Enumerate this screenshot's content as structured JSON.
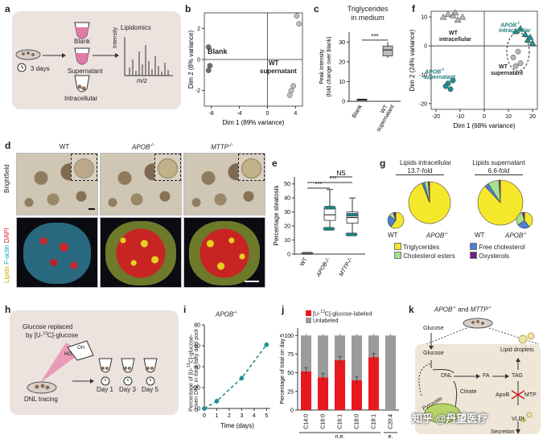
{
  "figure": {
    "panel_letters": [
      "a",
      "b",
      "c",
      "d",
      "e",
      "f",
      "g",
      "h",
      "i",
      "j",
      "k"
    ],
    "watermark": "知乎 @丹望医疗"
  },
  "panel_a": {
    "days": "3 days",
    "blank": "Blank",
    "supernatant": "Supernatant",
    "intracellular": "Intracellular",
    "lipidomics": "Lipidomics",
    "ylabel": "Intensity",
    "xlabel": "m/z"
  },
  "panel_b": {
    "xlabel": "Dim 1 (89% variance)",
    "ylabel": "Dim 2 (8% variance)",
    "label_blank": "Blank",
    "label_wt": "WT",
    "label_wt2": "supernatant",
    "xticks": [
      "-8",
      "-4",
      "0",
      "4"
    ],
    "yticks": [
      "2",
      "0",
      "-2"
    ],
    "chart_data": {
      "type": "scatter",
      "xlabel": "Dim 1 (89% variance)",
      "ylabel": "Dim 2 (8% variance)",
      "xlim": [
        -9,
        5
      ],
      "ylim": [
        -3,
        3
      ],
      "series": [
        {
          "name": "Blank",
          "color": "#6f6f6f",
          "points": [
            [
              -8.4,
              0.8
            ],
            [
              -8.2,
              -0.4
            ],
            [
              -8.4,
              -0.7
            ]
          ]
        },
        {
          "name": "WT supernatant",
          "color": "#bcbcbc",
          "points": [
            [
              4.2,
              2.8
            ],
            [
              4.5,
              2.3
            ],
            [
              3.4,
              -2.0
            ],
            [
              3.7,
              -1.7
            ],
            [
              3.2,
              -2.3
            ]
          ]
        }
      ]
    }
  },
  "panel_c": {
    "title": "Triglycerides",
    "title2": "in medium",
    "ylabel": "Peak intensity",
    "ylabel2": "(fold change over blank)",
    "yticks": [
      "0",
      "10",
      "20",
      "30"
    ],
    "categories": [
      "Blank",
      "WT",
      "supernatant"
    ],
    "sig": "***",
    "chart_data": {
      "type": "box",
      "categories": [
        "Blank",
        "WT supernatant"
      ],
      "ylim": [
        0,
        35
      ],
      "boxes": [
        {
          "name": "Blank",
          "min": 0.8,
          "q1": 0.9,
          "median": 1.0,
          "q3": 1.1,
          "max": 1.2
        },
        {
          "name": "WT supernatant",
          "min": 22,
          "q1": 23,
          "median": 26,
          "q3": 28,
          "max": 30
        }
      ]
    }
  },
  "panel_d": {
    "cols": [
      "WT",
      "APOB",
      "MTTP"
    ],
    "sup": "-/-",
    "row_bf": "Brightfield",
    "row_fl_lipids": "Lipids",
    "row_fl_factin": "F-actin",
    "row_fl_dapi": "DAPI"
  },
  "panel_e": {
    "ylabel": "Percentage steatosis",
    "yticks": [
      "0",
      "10",
      "20",
      "30",
      "40",
      "50"
    ],
    "categories": [
      "WT",
      "APOB",
      "MTTP"
    ],
    "sup": "-/-",
    "sig_ns": "NS",
    "sig1": "***",
    "sig2": "***",
    "chart_data": {
      "type": "box",
      "categories": [
        "WT",
        "APOB-/-",
        "MTTP-/-"
      ],
      "ylim": [
        0,
        55
      ],
      "boxes": [
        {
          "name": "WT",
          "min": 0,
          "q1": 0.2,
          "median": 0.5,
          "q3": 0.8,
          "max": 1.2
        },
        {
          "name": "APOB-/-",
          "min": 18,
          "q1": 24,
          "median": 28,
          "q3": 33,
          "max": 46
        },
        {
          "name": "MTTP-/-",
          "min": 14,
          "q1": 22,
          "median": 26,
          "q3": 30,
          "max": 40
        }
      ]
    }
  },
  "panel_f": {
    "xlabel": "Dim 1 (68% variance)",
    "ylabel": "Dim 2 (24% variance)",
    "xticks": [
      "-20",
      "-10",
      "0",
      "10",
      "20"
    ],
    "yticks": [
      "10",
      "0",
      "-10",
      "-20"
    ],
    "l_wt_intra": "WT",
    "l_wt_intra2": "intracellular",
    "l_apob_intra": "APOB",
    "l_apob_intra2": "intracellular",
    "l_wt_sup": "WT",
    "l_wt_sup2": "supernatant",
    "l_apob_sup": "APOB",
    "l_apob_sup2": "supernatant",
    "sup": "-/-",
    "chart_data": {
      "type": "scatter",
      "xlabel": "Dim 1 (68% variance)",
      "ylabel": "Dim 2 (24% variance)",
      "xlim": [
        -22,
        22
      ],
      "ylim": [
        -22,
        12
      ],
      "series": [
        {
          "name": "WT intracellular",
          "color": "#b5b5b5",
          "marker": "triangle",
          "points": [
            [
              -17,
              10
            ],
            [
              -15,
              11
            ],
            [
              -13,
              10.5
            ],
            [
              -11,
              9
            ],
            [
              -12,
              11.5
            ],
            [
              -9,
              10
            ]
          ]
        },
        {
          "name": "APOB-/- intracellular",
          "color": "#1f8f8f",
          "marker": "triangle",
          "points": [
            [
              13,
              5
            ],
            [
              15,
              6
            ],
            [
              17,
              4
            ],
            [
              18,
              2
            ],
            [
              19,
              3
            ],
            [
              20,
              1
            ]
          ]
        },
        {
          "name": "WT supernatant",
          "color": "#b5b5b5",
          "marker": "circle",
          "points": [
            [
              12,
              -4
            ],
            [
              14,
              -2
            ],
            [
              15,
              -6
            ],
            [
              13,
              -7
            ]
          ]
        },
        {
          "name": "APOB-/- supernatant",
          "color": "#1f8f8f",
          "marker": "circle",
          "points": [
            [
              -15,
              -13
            ],
            [
              -14,
              -15
            ],
            [
              -13,
              -12
            ],
            [
              -16,
              -14
            ]
          ]
        }
      ]
    }
  },
  "panel_g": {
    "title_intra": "Lipids intracellular",
    "fold_intra": "13.7-fold",
    "title_sup": "Lipids supernatant",
    "fold_sup": "6.6-fold",
    "wt": "WT",
    "apob": "APOB",
    "sup": "-/-",
    "legend": [
      "Triglycerides",
      "Free cholesterol",
      "Cholesterol esters",
      "Oxysterols"
    ],
    "colors": {
      "tg": "#f5e82a",
      "fc": "#4a7fd1",
      "ce": "#a7e08e",
      "ox": "#6b1f8a"
    },
    "chart_data": {
      "type": "pie",
      "pies": [
        {
          "name": "Intracellular WT",
          "slices": [
            {
              "label": "Triglycerides",
              "value": 60
            },
            {
              "label": "Free cholesterol",
              "value": 25
            },
            {
              "label": "Cholesterol esters",
              "value": 10
            },
            {
              "label": "Oxysterols",
              "value": 5
            }
          ]
        },
        {
          "name": "Intracellular APOB-/-",
          "slices": [
            {
              "label": "Triglycerides",
              "value": 94
            },
            {
              "label": "Free cholesterol",
              "value": 2
            },
            {
              "label": "Cholesterol esters",
              "value": 3
            },
            {
              "label": "Oxysterols",
              "value": 1
            }
          ]
        },
        {
          "name": "Supernatant WT",
          "slices": [
            {
              "label": "Triglycerides",
              "value": 88
            },
            {
              "label": "Free cholesterol",
              "value": 3
            },
            {
              "label": "Cholesterol esters",
              "value": 8
            },
            {
              "label": "Oxysterols",
              "value": 1
            }
          ]
        },
        {
          "name": "Supernatant APOB-/-",
          "slices": [
            {
              "label": "Triglycerides",
              "value": 40
            },
            {
              "label": "Free cholesterol",
              "value": 25
            },
            {
              "label": "Cholesterol esters",
              "value": 30
            },
            {
              "label": "Oxysterols",
              "value": 5
            }
          ]
        }
      ]
    }
  },
  "panel_h": {
    "title1": "Glucose replaced",
    "title2": "by [U-",
    "title2b": "13",
    "title2c": "C]-glucose",
    "dnl": "DNL tracing",
    "day1": "Day 1",
    "day3": "Day 3",
    "day5": "Day 5",
    "oh": "OH",
    "ho": "HO"
  },
  "panel_i": {
    "title": "APOB",
    "sup": "-/-",
    "ylabel1": "Percentage of [U-",
    "ylabel1b": "13",
    "ylabel1c": "C]-glucose-",
    "ylabel2": "driven DNL in total fatty acid pool",
    "xlabel": "Time (days)",
    "xticks": [
      "0",
      "1",
      "2",
      "3",
      "4",
      "5"
    ],
    "yticks": [
      "0",
      "20",
      "40",
      "60",
      "80"
    ],
    "chart_data": {
      "type": "line",
      "x": [
        0,
        1,
        3,
        5
      ],
      "y": [
        0,
        7,
        29,
        61
      ],
      "xlim": [
        0,
        5.3
      ],
      "ylim": [
        0,
        80
      ],
      "xlabel": "Time (days)",
      "color": "#1f8f8f"
    }
  },
  "panel_j": {
    "legend_labeled": "[U-",
    "legend_labeled_b": "13",
    "legend_labeled_c": "C]-glucose-labeled",
    "legend_unlabeled": "Unlabeled",
    "ylabel": "Percentage of total on day 5",
    "yticks": [
      "0",
      "25",
      "50",
      "75",
      "100"
    ],
    "categories": [
      "C14:0",
      "C16:0",
      "C16:1",
      "C18:0",
      "C18:1",
      "C20:4"
    ],
    "group_ne": "n.e.",
    "group_e": "e.",
    "chart_data": {
      "type": "bar",
      "stacked": true,
      "categories": [
        "C14:0",
        "C16:0",
        "C16:1",
        "C18:0",
        "C18:1",
        "C20:4"
      ],
      "ylim": [
        0,
        110
      ],
      "series": [
        {
          "name": "[U-13C]-glucose-labeled",
          "color": "#e8191e",
          "values": [
            52,
            44,
            67,
            40,
            71,
            0
          ]
        },
        {
          "name": "Unlabeled",
          "color": "#9b9b9b",
          "values": [
            48,
            56,
            33,
            60,
            29,
            100
          ]
        }
      ]
    }
  },
  "panel_k": {
    "title1": "APOB",
    "title_and": "and",
    "title2": "MTTP",
    "sup": "-/-",
    "glucose_out": "Glucose",
    "glucose_in": "Glucose",
    "lipid_droplets": "Lipid droplets",
    "dnl": "DNL",
    "fa": "FA",
    "tag": "TAG",
    "apob": "ApoB",
    "mttp": "MTP",
    "pyruvate": "Pyruvate",
    "citrate": "Citrate",
    "vldl": "VLDL",
    "secretion": "Secretion"
  }
}
